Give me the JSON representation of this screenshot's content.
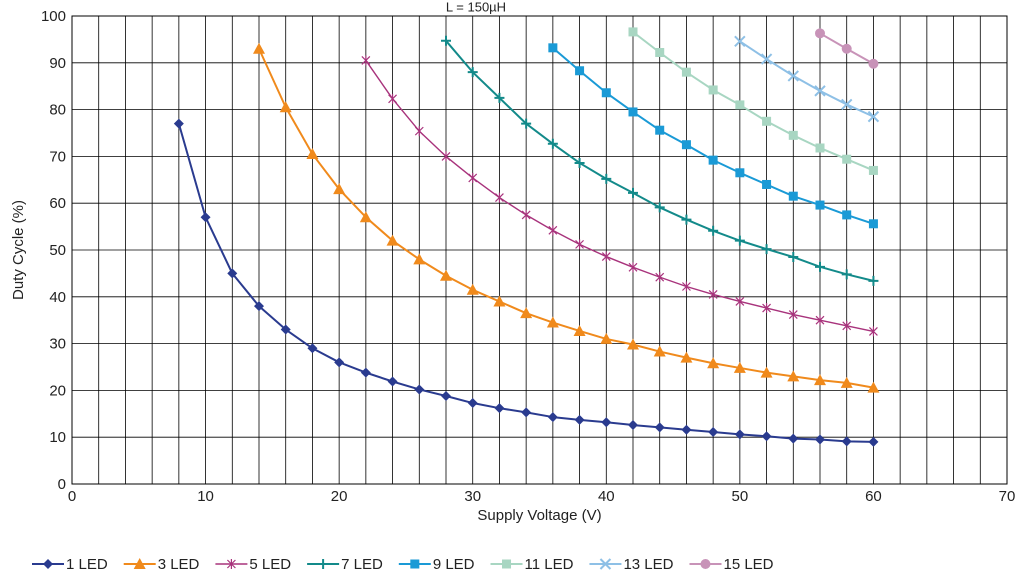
{
  "chart_data": {
    "type": "line",
    "title": "L = 150µH",
    "xlabel": "Supply Voltage (V)",
    "ylabel": "Duty Cycle (%)",
    "xlim": [
      0,
      70
    ],
    "ylim": [
      0,
      100
    ],
    "x_ticks": [
      "0",
      "10",
      "20",
      "30",
      "40",
      "50",
      "60",
      "70"
    ],
    "y_ticks": [
      "0",
      "10",
      "20",
      "30",
      "40",
      "50",
      "60",
      "70",
      "80",
      "90",
      "100"
    ],
    "grid": true,
    "legend_position": "bottom",
    "series": [
      {
        "name": "1 LED",
        "color": "#2a3b8f",
        "marker": "diamond",
        "x": [
          8,
          10,
          12,
          14,
          16,
          18,
          20,
          22,
          24,
          26,
          28,
          30,
          32,
          34,
          36,
          38,
          40,
          42,
          44,
          46,
          48,
          50,
          52,
          54,
          56,
          58,
          60
        ],
        "y": [
          77,
          57,
          45,
          38,
          33,
          29,
          26,
          23.8,
          21.9,
          20.2,
          18.8,
          17.3,
          16.2,
          15.3,
          14.3,
          13.7,
          13.2,
          12.6,
          12.1,
          11.6,
          11.1,
          10.6,
          10.2,
          9.7,
          9.5,
          9.1,
          9
        ]
      },
      {
        "name": "3 LED",
        "color": "#f08a1c",
        "marker": "triangle",
        "x": [
          14,
          16,
          18,
          20,
          22,
          24,
          26,
          28,
          30,
          32,
          34,
          36,
          38,
          40,
          42,
          44,
          46,
          48,
          50,
          52,
          54,
          56,
          58,
          60
        ],
        "y": [
          93,
          80.5,
          70.5,
          63,
          57,
          52,
          48,
          44.5,
          41.5,
          39,
          36.5,
          34.5,
          32.7,
          31,
          29.8,
          28.3,
          27,
          25.8,
          24.8,
          23.8,
          23,
          22.2,
          21.6,
          20.6
        ]
      },
      {
        "name": "5 LED",
        "color": "#a8337c",
        "marker": "star",
        "x": [
          22,
          24,
          26,
          28,
          30,
          32,
          34,
          36,
          38,
          40,
          42,
          44,
          46,
          48,
          50,
          52,
          54,
          56,
          58,
          60
        ],
        "y": [
          90.5,
          82.3,
          75.4,
          70,
          65.4,
          61.2,
          57.5,
          54.2,
          51.2,
          48.6,
          46.3,
          44.2,
          42.2,
          40.5,
          39,
          37.6,
          36.2,
          35,
          33.8,
          32.6
        ]
      },
      {
        "name": "7 LED",
        "color": "#138a8a",
        "marker": "plus",
        "x": [
          28,
          30,
          32,
          34,
          36,
          38,
          40,
          42,
          44,
          46,
          48,
          50,
          52,
          54,
          56,
          58,
          60
        ],
        "y": [
          94.7,
          88,
          82.5,
          77,
          72.7,
          68.6,
          65.2,
          62.2,
          59.1,
          56.5,
          54.1,
          52,
          50.2,
          48.5,
          46.4,
          44.8,
          43.4
        ]
      },
      {
        "name": "9 LED",
        "color": "#1a9ad6",
        "marker": "square",
        "x": [
          36,
          38,
          40,
          42,
          44,
          46,
          48,
          50,
          52,
          54,
          56,
          58,
          60
        ],
        "y": [
          93.2,
          88.3,
          83.6,
          79.5,
          75.6,
          72.5,
          69.2,
          66.5,
          64,
          61.5,
          59.6,
          57.5,
          55.6
        ]
      },
      {
        "name": "11 LED",
        "color": "#a8d6c2",
        "marker": "square",
        "x": [
          42,
          44,
          46,
          48,
          50,
          52,
          54,
          56,
          58,
          60
        ],
        "y": [
          96.6,
          92.2,
          88,
          84.2,
          81,
          77.5,
          74.5,
          71.8,
          69.4,
          67
        ]
      },
      {
        "name": "13 LED",
        "color": "#8ec0e6",
        "marker": "cross",
        "x": [
          50,
          52,
          54,
          56,
          58,
          60
        ],
        "y": [
          94.6,
          90.8,
          87.2,
          84,
          81.1,
          78.5
        ]
      },
      {
        "name": "15 LED",
        "color": "#c893b8",
        "marker": "circle",
        "x": [
          56,
          58,
          60
        ],
        "y": [
          96.3,
          93,
          89.8
        ]
      }
    ]
  }
}
